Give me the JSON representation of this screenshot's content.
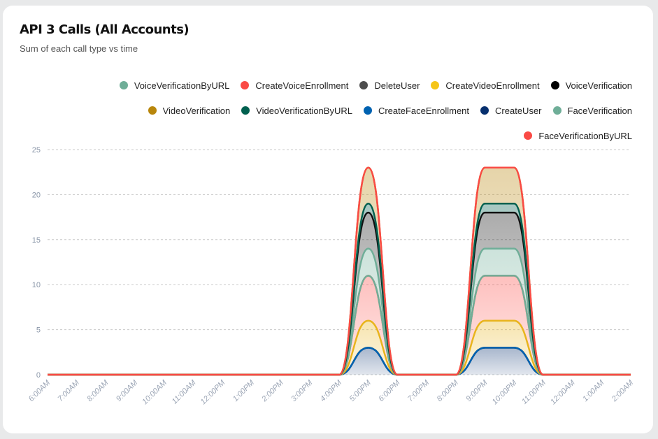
{
  "card": {
    "title": "API 3 Calls (All Accounts)",
    "subtitle": "Sum of each call type vs time"
  },
  "chart_data": {
    "type": "area",
    "stacked": true,
    "title": "API 3 Calls (All Accounts)",
    "subtitle": "Sum of each call type vs time",
    "xlabel": "",
    "ylabel": "",
    "ylim": [
      0,
      25
    ],
    "yticks": [
      0,
      5,
      10,
      15,
      20,
      25
    ],
    "grid": true,
    "legend_position": "top-right",
    "categories": [
      "6:00AM",
      "7:00AM",
      "8:00AM",
      "9:00AM",
      "10:00AM",
      "11:00AM",
      "12:00PM",
      "1:00PM",
      "2:00PM",
      "3:00PM",
      "4:00PM",
      "5:00PM",
      "6:00PM",
      "7:00PM",
      "8:00PM",
      "9:00PM",
      "10:00PM",
      "11:00PM",
      "12:00AM",
      "1:00AM",
      "2:00AM"
    ],
    "legend": [
      {
        "name": "VoiceVerificationByURL",
        "color": "#6fae98"
      },
      {
        "name": "CreateVoiceEnrollment",
        "color": "#fa4a45"
      },
      {
        "name": "DeleteUser",
        "color": "#4d4d4d"
      },
      {
        "name": "CreateVideoEnrollment",
        "color": "#f5c518"
      },
      {
        "name": "VoiceVerification",
        "color": "#000000"
      },
      {
        "name": "VideoVerification",
        "color": "#b8860b"
      },
      {
        "name": "VideoVerificationByURL",
        "color": "#00604f"
      },
      {
        "name": "CreateFaceEnrollment",
        "color": "#0062b1"
      },
      {
        "name": "CreateUser",
        "color": "#062f6e"
      },
      {
        "name": "FaceVerification",
        "color": "#6fae98"
      },
      {
        "name": "FaceVerificationByURL",
        "color": "#fa4a45"
      }
    ],
    "series": [
      {
        "name": "CreateUser",
        "color": "#062f6e",
        "values": [
          0,
          0,
          0,
          0,
          0,
          0,
          0,
          0,
          0,
          0,
          0,
          3,
          0,
          0,
          0,
          3,
          3,
          0,
          0,
          0,
          0
        ]
      },
      {
        "name": "DeleteUser",
        "color": "#4d4d4d",
        "values": [
          0,
          0,
          0,
          0,
          0,
          0,
          0,
          0,
          0,
          0,
          0,
          0,
          0,
          0,
          0,
          0,
          0,
          0,
          0,
          0,
          0
        ]
      },
      {
        "name": "CreateFaceEnrollment",
        "color": "#0062b1",
        "values": [
          0,
          0,
          0,
          0,
          0,
          0,
          0,
          0,
          0,
          0,
          0,
          0,
          0,
          0,
          0,
          0,
          0,
          0,
          0,
          0,
          0
        ]
      },
      {
        "name": "CreateVideoEnrollment",
        "color": "#e8b41c",
        "values": [
          0,
          0,
          0,
          0,
          0,
          0,
          0,
          0,
          0,
          0,
          0,
          3,
          0,
          0,
          0,
          3,
          3,
          0,
          0,
          0,
          0
        ]
      },
      {
        "name": "CreateVoiceEnrollment",
        "color": "#fa4a45",
        "values": [
          0,
          0,
          0,
          0,
          0,
          0,
          0,
          0,
          0,
          0,
          0,
          5,
          0,
          0,
          0,
          5,
          5,
          0,
          0,
          0,
          0
        ]
      },
      {
        "name": "FaceVerification",
        "color": "#6fae98",
        "values": [
          0,
          0,
          0,
          0,
          0,
          0,
          0,
          0,
          0,
          0,
          0,
          0,
          0,
          0,
          0,
          0,
          0,
          0,
          0,
          0,
          0
        ]
      },
      {
        "name": "VoiceVerificationByURL",
        "color": "#6fae98",
        "values": [
          0,
          0,
          0,
          0,
          0,
          0,
          0,
          0,
          0,
          0,
          0,
          3,
          0,
          0,
          0,
          3,
          3,
          0,
          0,
          0,
          0
        ]
      },
      {
        "name": "VoiceVerification",
        "color": "#111111",
        "values": [
          0,
          0,
          0,
          0,
          0,
          0,
          0,
          0,
          0,
          0,
          0,
          4,
          0,
          0,
          0,
          4,
          4,
          0,
          0,
          0,
          0
        ]
      },
      {
        "name": "VideoVerificationByURL",
        "color": "#00604f",
        "values": [
          0,
          0,
          0,
          0,
          0,
          0,
          0,
          0,
          0,
          0,
          0,
          1,
          0,
          0,
          0,
          1,
          1,
          0,
          0,
          0,
          0
        ]
      },
      {
        "name": "VideoVerification",
        "color": "#b8860b",
        "values": [
          0,
          0,
          0,
          0,
          0,
          0,
          0,
          0,
          0,
          0,
          0,
          4,
          0,
          0,
          0,
          4,
          4,
          0,
          0,
          0,
          0
        ]
      },
      {
        "name": "FaceVerificationByURL",
        "color": "#fa4a45",
        "values": [
          0,
          0,
          0,
          0,
          0,
          0,
          0,
          0,
          0,
          0,
          0,
          0,
          0,
          0,
          0,
          0,
          0,
          0,
          0,
          0,
          0
        ]
      }
    ]
  }
}
